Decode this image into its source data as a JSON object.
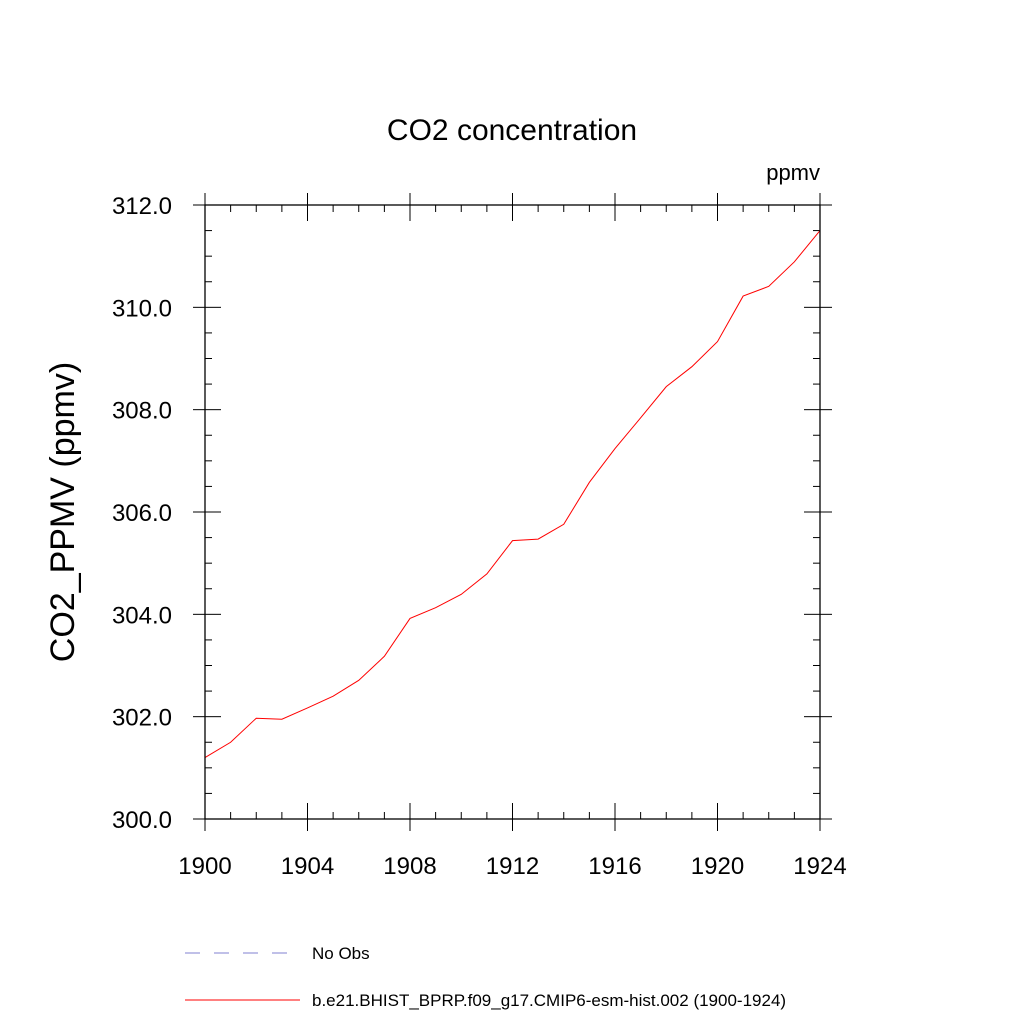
{
  "chart_data": {
    "type": "line",
    "title": "CO2 concentration",
    "units_label": "ppmv",
    "xlabel": "",
    "ylabel": "CO2_PPMV  (ppmv)",
    "xlim": [
      1900,
      1924
    ],
    "ylim": [
      300.0,
      312.0
    ],
    "x_ticks": [
      "1900",
      "1904",
      "1908",
      "1912",
      "1916",
      "1920",
      "1924"
    ],
    "y_ticks": [
      "300.0",
      "302.0",
      "304.0",
      "306.0",
      "308.0",
      "310.0",
      "312.0"
    ],
    "grid": false,
    "legend_position": "bottom",
    "series": [
      {
        "name": "b.e21.BHIST_BPRP.f09_g17.CMIP6-esm-hist.002 (1900-1924)",
        "color": "#ff0000",
        "style": "solid",
        "x": [
          1900,
          1901,
          1902,
          1903,
          1904,
          1905,
          1906,
          1907,
          1908,
          1909,
          1910,
          1911,
          1912,
          1913,
          1914,
          1915,
          1916,
          1917,
          1918,
          1919,
          1920,
          1921,
          1922,
          1923,
          1924
        ],
        "values": [
          301.2,
          301.5,
          301.97,
          301.95,
          302.17,
          302.4,
          302.71,
          303.18,
          303.92,
          304.13,
          304.39,
          304.79,
          305.44,
          305.47,
          305.76,
          306.58,
          307.24,
          307.84,
          308.45,
          308.84,
          309.33,
          310.22,
          310.41,
          310.89,
          311.5
        ]
      }
    ],
    "legend": [
      {
        "label": "No Obs",
        "color": "#8080d0",
        "style": "dashed"
      },
      {
        "label": "b.e21.BHIST_BPRP.f09_g17.CMIP6-esm-hist.002 (1900-1924)",
        "color": "#ff0000",
        "style": "solid"
      }
    ]
  }
}
